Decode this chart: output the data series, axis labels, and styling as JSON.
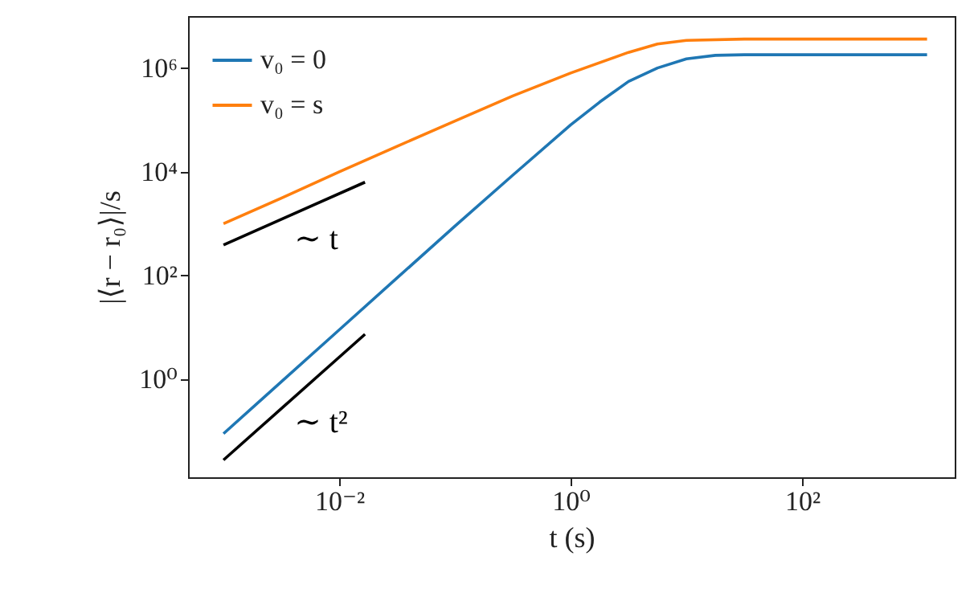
{
  "chart_data": {
    "type": "line",
    "xlabel": "t (s)",
    "ylabel": "|⟨r − r₀⟩|/s",
    "log": "xy",
    "grid": false,
    "legend": "top left",
    "xlim": [
      0.000494,
      2080
    ],
    "ylim": [
      0.013,
      10000000
    ],
    "xticks": [
      {
        "value": 0.01,
        "label": "10⁻²"
      },
      {
        "value": 1,
        "label": "10⁰"
      },
      {
        "value": 100,
        "label": "10²"
      }
    ],
    "yticks": [
      {
        "value": 1,
        "label": "10⁰"
      },
      {
        "value": 100,
        "label": "10²"
      },
      {
        "value": 10000,
        "label": "10⁴"
      },
      {
        "value": 1000000,
        "label": "10⁶"
      }
    ],
    "series": [
      {
        "name": "v₀ = 0",
        "color": "#1f77b4",
        "x": [
          0.001,
          0.00316,
          0.01,
          0.0316,
          0.1,
          0.316,
          1,
          1.78,
          3.16,
          5.62,
          10,
          17.8,
          31.6,
          100,
          1000,
          1200
        ],
        "values": [
          0.09,
          0.9,
          9,
          90,
          900,
          8600,
          80000,
          220000,
          550000,
          1000000,
          1500000,
          1750000,
          1800000,
          1800000,
          1800000,
          1800000
        ]
      },
      {
        "name": "v₀ = s",
        "color": "#ff7f0e",
        "x": [
          0.001,
          0.00316,
          0.01,
          0.0316,
          0.1,
          0.316,
          1,
          3.16,
          5.62,
          10,
          31.6,
          1000,
          1200
        ],
        "values": [
          1000,
          3100,
          10000,
          31000,
          95000,
          290000,
          800000,
          2000000,
          2900000,
          3400000,
          3600000,
          3600000,
          3600000
        ]
      },
      {
        "color": "#000000",
        "x": [
          0.001,
          0.0167
        ],
        "values": [
          390,
          6300
        ]
      },
      {
        "color": "#000000",
        "x": [
          0.001,
          0.0167
        ],
        "values": [
          0.028,
          7.4
        ]
      }
    ],
    "annotations": [
      "∼ t",
      "∼ t²"
    ]
  }
}
